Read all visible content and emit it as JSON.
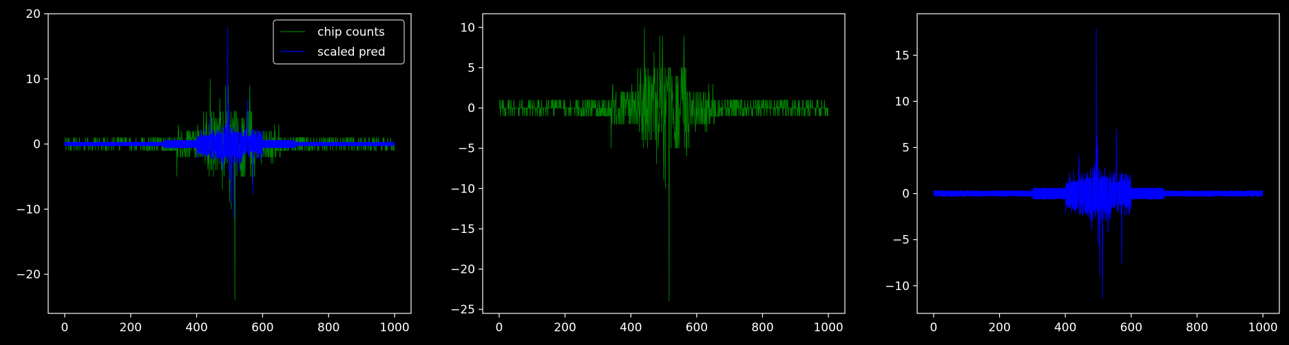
{
  "figure": {
    "background": "#000000",
    "axis_color": "#ffffff",
    "tick_text_color": "#ffffff"
  },
  "chart_data": [
    {
      "type": "line",
      "title": "",
      "xlabel": "",
      "ylabel": "",
      "xlim": [
        -50,
        1050
      ],
      "ylim": [
        -26,
        20
      ],
      "xticks": [
        0,
        200,
        400,
        600,
        800,
        1000
      ],
      "yticks": [
        -20,
        -10,
        0,
        10,
        20
      ],
      "legend": {
        "placement": "upper right",
        "entries": [
          "chip counts",
          "scaled pred"
        ]
      },
      "series": [
        {
          "name": "chip counts",
          "ref": "counts",
          "color": "#008000"
        },
        {
          "name": "scaled pred",
          "ref": "pred",
          "color": "#0000ff"
        }
      ]
    },
    {
      "type": "line",
      "title": "",
      "xlabel": "",
      "ylabel": "",
      "xlim": [
        -50,
        1050
      ],
      "ylim": [
        -25.5,
        11.7
      ],
      "xticks": [
        0,
        200,
        400,
        600,
        800,
        1000
      ],
      "yticks": [
        -25,
        -20,
        -15,
        -10,
        -5,
        0,
        5,
        10
      ],
      "series": [
        {
          "ref": "counts",
          "color": "#008000"
        }
      ]
    },
    {
      "type": "line",
      "title": "",
      "xlabel": "",
      "ylabel": "",
      "xlim": [
        -50,
        1050
      ],
      "ylim": [
        -13,
        19.5
      ],
      "xticks": [
        0,
        200,
        400,
        600,
        800,
        1000
      ],
      "yticks": [
        -10,
        -5,
        0,
        5,
        10,
        15
      ],
      "series": [
        {
          "ref": "pred",
          "color": "#0000ff"
        }
      ]
    }
  ]
}
